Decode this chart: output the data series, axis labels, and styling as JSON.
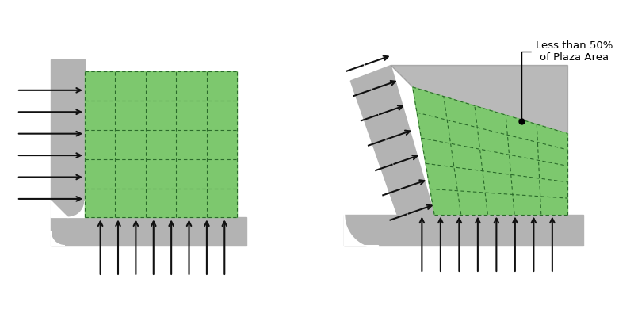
{
  "bg_color": "#ffffff",
  "gray_color": "#b3b3b3",
  "dark_gray_color": "#808080",
  "green_color": "#7dc86e",
  "grid_color": "#2a6a2a",
  "arrow_color": "#111111",
  "annotation_text": "Less than 50%\nof Plaza Area",
  "annotation_fontsize": 9.5
}
